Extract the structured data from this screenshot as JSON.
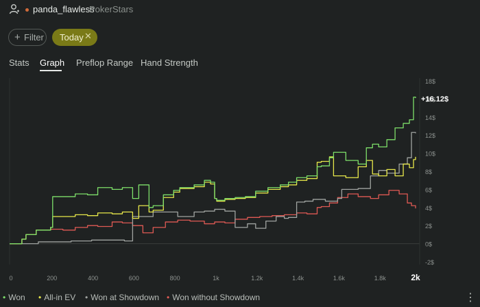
{
  "header": {
    "username": "panda_flawless",
    "site": "PokerStars",
    "accent_dot_color": "#d06a3a"
  },
  "filters": {
    "filter_label": "Filter",
    "today_label": "Today",
    "today_color": "#7a7a17"
  },
  "tabs": [
    {
      "label": "Stats"
    },
    {
      "label": "Graph",
      "active": true
    },
    {
      "label": "Preflop Range"
    },
    {
      "label": "Hand Strength"
    }
  ],
  "chart_data": {
    "type": "line",
    "end_label": "+16.12$",
    "xlim": [
      0,
      2000
    ],
    "ylim": [
      -2,
      18
    ],
    "x_ticks": [
      "0",
      "200",
      "400",
      "600",
      "800",
      "1k",
      "1.2k",
      "1.4k",
      "1.6k",
      "1.8k",
      "2k"
    ],
    "y_ticks": [
      "18$",
      "16$",
      "14$",
      "12$",
      "10$",
      "8$",
      "6$",
      "4$",
      "2$",
      "0$",
      "-2$"
    ],
    "grid": false,
    "legend_position": "bottom-left",
    "series": [
      {
        "name": "Won",
        "color": "#7ee06a",
        "x": [
          0,
          60,
          80,
          130,
          200,
          210,
          260,
          320,
          380,
          430,
          500,
          550,
          600,
          630,
          680,
          700,
          750,
          800,
          830,
          900,
          950,
          980,
          1000,
          1010,
          1050,
          1100,
          1150,
          1200,
          1260,
          1320,
          1360,
          1400,
          1450,
          1500,
          1520,
          1560,
          1580,
          1640,
          1700,
          1740,
          1770,
          1800,
          1840,
          1880,
          1920,
          1950,
          1970,
          1980
        ],
        "y": [
          0,
          0.5,
          1,
          1.5,
          1.8,
          5.2,
          5.2,
          5.5,
          5.4,
          6.2,
          6,
          6.2,
          5,
          6.5,
          4,
          4.2,
          5.4,
          5.9,
          6.2,
          6.5,
          7,
          6.8,
          5,
          4.8,
          5,
          5.1,
          5.2,
          5.8,
          6.2,
          6.5,
          6.8,
          7.3,
          7.5,
          8.5,
          8.6,
          9.5,
          10.1,
          9.2,
          8.8,
          10.6,
          11,
          10.7,
          11.5,
          12.8,
          13.3,
          13.7,
          16.2,
          16.1
        ]
      },
      {
        "name": "All-in EV",
        "color": "#e8e84a",
        "x": [
          0,
          60,
          80,
          130,
          200,
          210,
          260,
          320,
          380,
          430,
          500,
          550,
          600,
          630,
          680,
          700,
          750,
          800,
          830,
          900,
          950,
          980,
          1000,
          1010,
          1050,
          1100,
          1150,
          1200,
          1260,
          1320,
          1360,
          1400,
          1450,
          1500,
          1520,
          1560,
          1580,
          1640,
          1700,
          1740,
          1770,
          1800,
          1840,
          1880,
          1920,
          1950,
          1970,
          1980
        ],
        "y": [
          0,
          0.5,
          1,
          1.5,
          1.8,
          3,
          3,
          3.2,
          3.1,
          3.4,
          3.3,
          3.5,
          2.8,
          4.2,
          3.5,
          3.7,
          5.1,
          5.7,
          6.1,
          6.3,
          6.8,
          6.6,
          5,
          4.7,
          4.9,
          5,
          5.1,
          5.6,
          6,
          6.3,
          6.5,
          7,
          7.2,
          9,
          9.1,
          9.6,
          7.5,
          7.3,
          8.5,
          9.2,
          7.7,
          7.5,
          8.2,
          7.5,
          8.8,
          8.4,
          9.3,
          9.6
        ]
      },
      {
        "name": "Won at Showdown",
        "color": "#a0a4a1",
        "x": [
          0,
          130,
          140,
          300,
          400,
          560,
          600,
          700,
          820,
          900,
          950,
          1000,
          1050,
          1100,
          1160,
          1200,
          1250,
          1300,
          1340,
          1360,
          1400,
          1440,
          1480,
          1540,
          1600,
          1620,
          1700,
          1760,
          1800,
          1840,
          1900,
          1940,
          1960,
          1980
        ],
        "y": [
          0,
          0,
          0.2,
          0.3,
          0.4,
          0.3,
          3,
          3.5,
          3,
          3.5,
          3.6,
          3.8,
          3.6,
          1.8,
          2.2,
          1.7,
          2.5,
          3,
          2.8,
          2.9,
          4.6,
          4.7,
          4.9,
          4.7,
          5,
          6,
          6.1,
          7.5,
          8.1,
          7.8,
          8.8,
          9.5,
          12.3,
          12.2
        ]
      },
      {
        "name": "Won without Showdown",
        "color": "#e05a54",
        "x": [
          0,
          60,
          80,
          130,
          200,
          260,
          320,
          380,
          430,
          500,
          550,
          600,
          650,
          700,
          760,
          820,
          880,
          950,
          1000,
          1050,
          1100,
          1160,
          1220,
          1280,
          1340,
          1400,
          1450,
          1500,
          1520,
          1560,
          1600,
          1650,
          1700,
          1760,
          1800,
          1850,
          1900,
          1940,
          1960,
          1980
        ],
        "y": [
          0,
          0.5,
          1,
          1.5,
          1.6,
          1.5,
          1.8,
          2,
          1.9,
          2.4,
          2.3,
          2,
          1.2,
          1.8,
          2.4,
          2.6,
          2.5,
          2.2,
          2.4,
          2.3,
          2.7,
          2.9,
          3,
          3.1,
          3.2,
          3.4,
          3.3,
          4,
          4.1,
          4.5,
          5.1,
          5.5,
          5.2,
          5,
          5.4,
          5.9,
          5.5,
          4.5,
          4.2,
          3.9
        ]
      }
    ]
  },
  "more_icon": "more-vertical-icon"
}
